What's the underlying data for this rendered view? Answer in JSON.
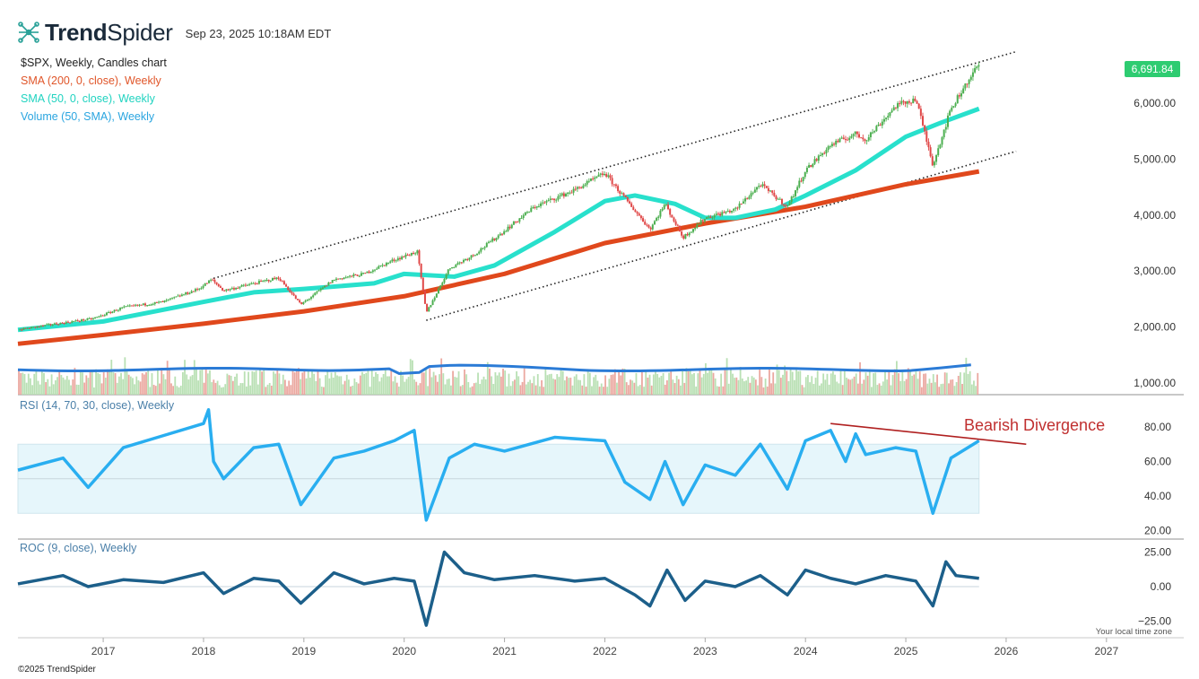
{
  "header": {
    "brand_bold": "Trend",
    "brand_light": "Spider",
    "timestamp": "Sep 23, 2025 10:18AM EDT"
  },
  "legend": {
    "title": "$SPX, Weekly, Candles chart",
    "sma200": "SMA (200, 0, close), Weekly",
    "sma50": "SMA (50, 0, close), Weekly",
    "volume": "Volume (50, SMA), Weekly"
  },
  "panels": {
    "rsi_title": "RSI (14, 70, 30, close), Weekly",
    "roc_title": "ROC (9, close), Weekly",
    "annotation": "Bearish Divergence",
    "local_time": "Your local time zone"
  },
  "footer": "©2025 TrendSpider",
  "colors": {
    "up": "#4caf50",
    "down": "#e04848",
    "sma200": "#e0481c",
    "sma50": "#28e0cc",
    "volume_sma": "#2b7bd6",
    "rsi": "#29aef0",
    "roc": "#1c5f8a",
    "price_badge": "#2ecc71",
    "divergence": "#b02020"
  },
  "chart_data": {
    "type": "line",
    "symbol": "$SPX",
    "interval": "Weekly",
    "last_price": "6,691.84",
    "price_ylim": [
      1800,
      6900
    ],
    "price_ticks": [
      "6,000.00",
      "5,000.00",
      "4,000.00",
      "3,000.00",
      "2,000.00",
      "1,000.00"
    ],
    "rsi_ticks": [
      "80.00",
      "60.00",
      "40.00",
      "20.00"
    ],
    "roc_ticks": [
      "25.00",
      "0.00",
      "−25.00"
    ],
    "x_ticks": [
      "2017",
      "2018",
      "2019",
      "2020",
      "2021",
      "2022",
      "2023",
      "2024",
      "2025",
      "2026",
      "2027"
    ],
    "x_range": [
      2016.15,
      2027.1
    ],
    "price": {
      "x": [
        2016.15,
        2016.5,
        2016.9,
        2017.2,
        2017.6,
        2017.95,
        2018.08,
        2018.2,
        2018.5,
        2018.75,
        2018.97,
        2019.3,
        2019.6,
        2019.9,
        2020.13,
        2020.22,
        2020.45,
        2020.7,
        2020.95,
        2021.3,
        2021.7,
        2022.0,
        2022.2,
        2022.45,
        2022.6,
        2022.78,
        2023.0,
        2023.3,
        2023.55,
        2023.82,
        2024.0,
        2024.25,
        2024.5,
        2024.6,
        2024.9,
        2025.1,
        2025.27,
        2025.45,
        2025.6,
        2025.73
      ],
      "y": [
        1950,
        2050,
        2150,
        2350,
        2450,
        2680,
        2850,
        2650,
        2780,
        2880,
        2400,
        2850,
        2950,
        3200,
        3350,
        2250,
        3050,
        3300,
        3650,
        4150,
        4450,
        4750,
        4300,
        3750,
        4200,
        3600,
        3950,
        4100,
        4550,
        4150,
        4800,
        5250,
        5450,
        5350,
        5950,
        6080,
        4900,
        5900,
        6350,
        6691.84
      ]
    },
    "sma50": {
      "x": [
        2016.15,
        2017.0,
        2018.0,
        2018.5,
        2019.0,
        2019.7,
        2020.0,
        2020.5,
        2020.9,
        2021.5,
        2022.0,
        2022.3,
        2022.7,
        2023.0,
        2023.3,
        2023.7,
        2024.0,
        2024.5,
        2025.0,
        2025.35,
        2025.73
      ],
      "y": [
        1950,
        2100,
        2450,
        2620,
        2680,
        2780,
        2950,
        2900,
        3100,
        3700,
        4250,
        4350,
        4200,
        3950,
        3950,
        4100,
        4350,
        4800,
        5400,
        5650,
        5900
      ]
    },
    "sma200": {
      "x": [
        2016.15,
        2017.0,
        2018.0,
        2019.0,
        2020.0,
        2021.0,
        2022.0,
        2023.0,
        2024.0,
        2025.0,
        2025.73
      ],
      "y": [
        1700,
        1860,
        2060,
        2280,
        2550,
        2950,
        3500,
        3850,
        4150,
        4550,
        4780
      ]
    },
    "channel_upper": {
      "x": [
        2018.1,
        2026.1
      ],
      "y": [
        2870,
        6920
      ]
    },
    "channel_lower": {
      "x": [
        2020.22,
        2026.1
      ],
      "y": [
        2120,
        5140
      ]
    },
    "rsi": {
      "x": [
        2016.15,
        2016.6,
        2016.85,
        2017.2,
        2017.6,
        2018.0,
        2018.05,
        2018.1,
        2018.2,
        2018.5,
        2018.75,
        2018.97,
        2019.3,
        2019.6,
        2019.9,
        2020.1,
        2020.22,
        2020.45,
        2020.7,
        2021.0,
        2021.5,
        2022.0,
        2022.2,
        2022.45,
        2022.6,
        2022.78,
        2023.0,
        2023.3,
        2023.55,
        2023.82,
        2024.0,
        2024.25,
        2024.4,
        2024.5,
        2024.6,
        2024.9,
        2025.1,
        2025.27,
        2025.45,
        2025.73
      ],
      "y": [
        55,
        62,
        45,
        68,
        75,
        82,
        90,
        60,
        50,
        68,
        70,
        35,
        62,
        66,
        72,
        78,
        26,
        62,
        70,
        66,
        74,
        72,
        48,
        38,
        60,
        35,
        58,
        52,
        70,
        44,
        72,
        78,
        60,
        76,
        64,
        68,
        66,
        30,
        62,
        72
      ]
    },
    "roc": {
      "x": [
        2016.15,
        2016.6,
        2016.85,
        2017.2,
        2017.6,
        2018.0,
        2018.2,
        2018.5,
        2018.75,
        2018.97,
        2019.3,
        2019.6,
        2019.9,
        2020.1,
        2020.22,
        2020.4,
        2020.6,
        2020.9,
        2021.3,
        2021.7,
        2022.0,
        2022.3,
        2022.45,
        2022.62,
        2022.8,
        2023.0,
        2023.3,
        2023.55,
        2023.82,
        2024.0,
        2024.25,
        2024.5,
        2024.8,
        2025.1,
        2025.27,
        2025.4,
        2025.5,
        2025.73
      ],
      "y": [
        2,
        8,
        0,
        5,
        3,
        10,
        -5,
        6,
        4,
        -12,
        10,
        2,
        6,
        4,
        -28,
        25,
        10,
        5,
        8,
        4,
        6,
        -6,
        -14,
        12,
        -10,
        4,
        0,
        8,
        -6,
        12,
        6,
        2,
        8,
        4,
        -14,
        18,
        8,
        6
      ]
    },
    "divergence_line": {
      "x": [
        2024.25,
        2026.2
      ],
      "y": [
        82,
        70
      ]
    }
  }
}
